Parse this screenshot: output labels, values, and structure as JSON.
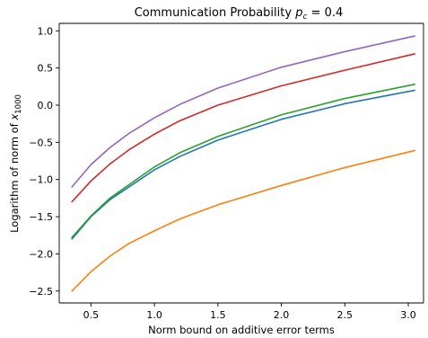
{
  "chart_data": {
    "type": "line",
    "title_main": "Communication Probability ",
    "title_symbol": "p",
    "title_subscript": "c",
    "title_rest": " = 0.4",
    "xlabel": "Norm bound on additive error terms",
    "ylabel_main": "Logarithm of norm of ",
    "ylabel_symbol": "x",
    "ylabel_subscript": "1000",
    "xlim": [
      0.25,
      3.12
    ],
    "ylim": [
      -2.66,
      1.1
    ],
    "xticks": [
      0.5,
      1.0,
      1.5,
      2.0,
      2.5,
      3.0
    ],
    "xtick_labels": [
      "0.5",
      "1.0",
      "1.5",
      "2.0",
      "2.5",
      "3.0"
    ],
    "yticks": [
      1.0,
      0.5,
      0.0,
      -0.5,
      -1.0,
      -1.5,
      -2.0,
      -2.5
    ],
    "ytick_labels": [
      "1.0",
      "0.5",
      "0.0",
      "−0.5",
      "−1.0",
      "−1.5",
      "−2.0",
      "−2.5"
    ],
    "grid": false,
    "legend": "none",
    "x": [
      0.35,
      0.5,
      0.65,
      0.8,
      1.0,
      1.2,
      1.5,
      2.0,
      2.5,
      3.05
    ],
    "series": [
      {
        "color": "#1f77b4",
        "values": [
          -1.8,
          -1.5,
          -1.27,
          -1.1,
          -0.87,
          -0.69,
          -0.47,
          -0.19,
          0.02,
          0.2
        ]
      },
      {
        "color": "#ff7f0e",
        "values": [
          -2.5,
          -2.24,
          -2.03,
          -1.86,
          -1.69,
          -1.53,
          -1.34,
          -1.08,
          -0.84,
          -0.61
        ]
      },
      {
        "color": "#2ca02c",
        "values": [
          -1.78,
          -1.49,
          -1.25,
          -1.07,
          -0.83,
          -0.64,
          -0.42,
          -0.13,
          0.09,
          0.28
        ]
      },
      {
        "color": "#d62728",
        "values": [
          -1.3,
          -1.02,
          -0.79,
          -0.6,
          -0.39,
          -0.21,
          0.0,
          0.26,
          0.47,
          0.69
        ]
      },
      {
        "color": "#9467bd",
        "values": [
          -1.1,
          -0.8,
          -0.57,
          -0.38,
          -0.17,
          0.01,
          0.23,
          0.51,
          0.72,
          0.93
        ]
      }
    ]
  }
}
